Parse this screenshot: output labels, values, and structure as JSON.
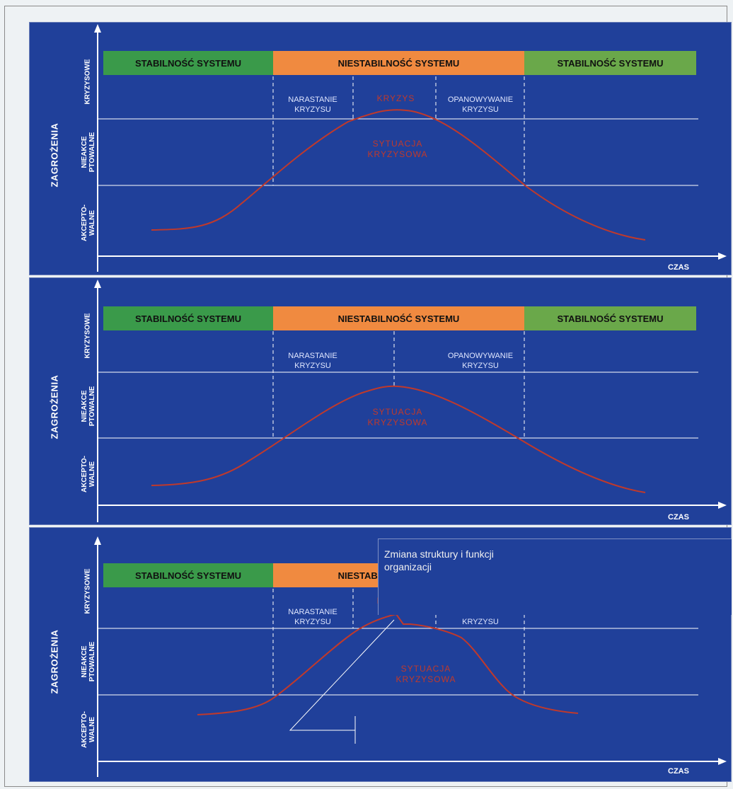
{
  "y_axis_label": "ZAGROŻENIA",
  "x_axis_label": "CZAS",
  "level_labels": {
    "crisis": "KRYZYSOWE",
    "unacceptable": "NIEAKCE\nPTOWALNE",
    "acceptable": "AKCEPTO-\nWALNE"
  },
  "bands": {
    "stable_left": "STABILNOŚĆ SYSTEMU",
    "unstable": "NIESTABILNOŚĆ SYSTEMU",
    "stable_right": "STABILNOŚĆ SYSTEMU"
  },
  "phases": {
    "rise": "NARASTANIE\nKRYZYSU",
    "crisis": "KRYZYS",
    "control": "OPANOWYWANIE\nKRYZYSU",
    "situation": "SYTUACJA\nKRYZYSOWA"
  },
  "annotation": "Zmiana struktury i funkcji\norganizacji",
  "colors": {
    "panel_bg": "#20409a",
    "stable_left": "#3a9a4a",
    "unstable": "#f08a40",
    "stable_right": "#6aa84a",
    "curve": "#c0392b"
  }
}
